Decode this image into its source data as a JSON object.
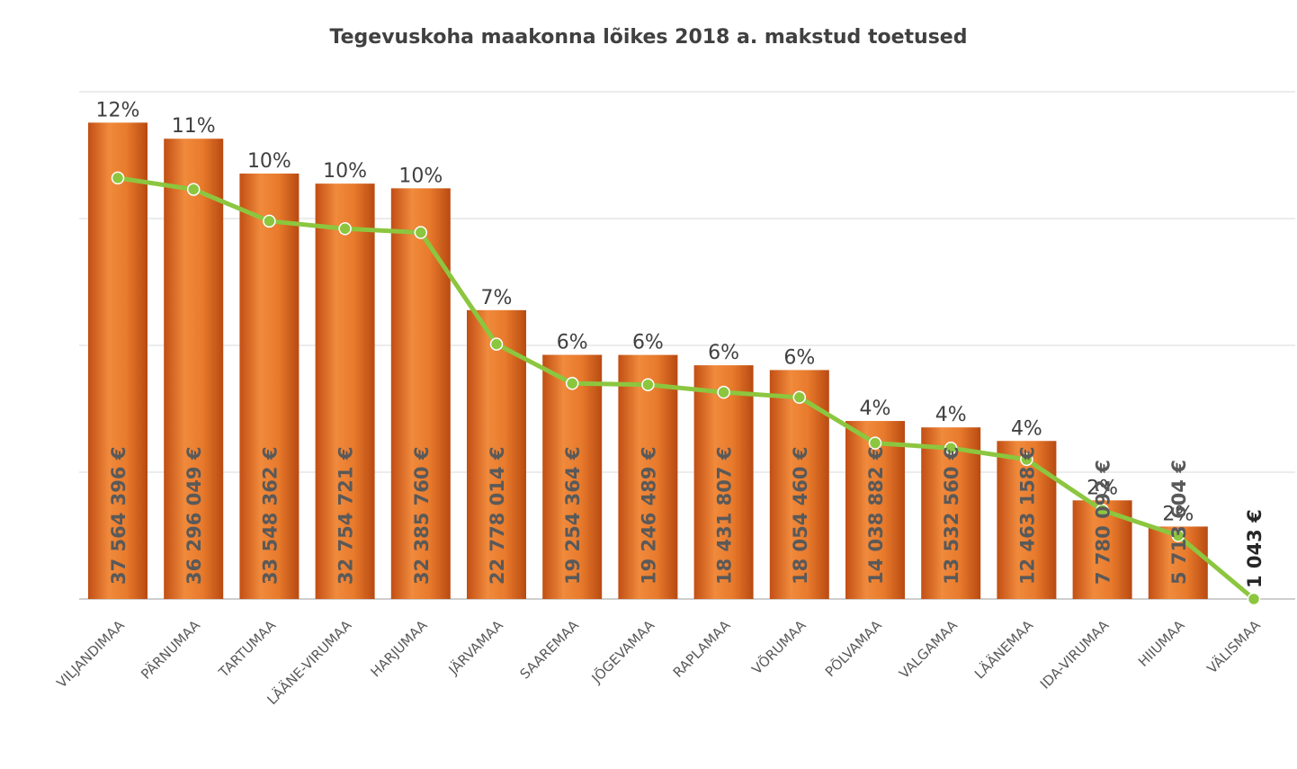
{
  "chart_data": {
    "type": "bar",
    "title": "Tegevuskoha maakonna lõikes 2018 a. makstud toetused",
    "xlabel": "",
    "ylabel": "",
    "categories": [
      "VILJANDIMAA",
      "PÄRNUMAA",
      "TARTUMAA",
      "LÄÄNE-VIRUMAA",
      "HARJUMAA",
      "JÄRVAMAA",
      "SAAREMAA",
      "JÕGEVAMAA",
      "RAPLAMAA",
      "VÕRUMAA",
      "PÕLVAMAA",
      "VALGAMAA",
      "LÄÄNEMAA",
      "IDA-VIRUMAA",
      "HIIUMAA",
      "VÄLISMAA"
    ],
    "values": [
      37564396,
      36296049,
      33548362,
      32754721,
      32385760,
      22778014,
      19254364,
      19246489,
      18431807,
      18054460,
      14038882,
      13532560,
      12463158,
      7780092,
      5713604,
      1043
    ],
    "value_labels": [
      "37 564 396 €",
      "36 296 049 €",
      "33 548 362 €",
      "32 754 721 €",
      "32 385 760 €",
      "22 778 014 €",
      "19 254 364 €",
      "19 246 489 €",
      "18 431 807 €",
      "18 054 460 €",
      "14 038 882 €",
      "13 532 560 €",
      "12 463 158 €",
      "7 780 092 €",
      "5 713 604 €",
      "1 043 €"
    ],
    "percent_labels": [
      "12%",
      "11%",
      "10%",
      "10%",
      "10%",
      "7%",
      "6%",
      "6%",
      "6%",
      "6%",
      "4%",
      "4%",
      "4%",
      "2%",
      "2%",
      ""
    ],
    "line_series": [
      33200000,
      32300000,
      29800000,
      29200000,
      28900000,
      20100000,
      17000000,
      16900000,
      16300000,
      15900000,
      12300000,
      11900000,
      11000000,
      7000000,
      5000000,
      0
    ],
    "ylim": [
      0,
      40000000
    ],
    "y_gridlines": [
      0,
      10000000,
      20000000,
      30000000,
      40000000
    ],
    "grid": true,
    "legend": "none",
    "colors": {
      "bar_top": "#e8782a",
      "bar_mid": "#c8561a",
      "bar_bottom": "#f09040",
      "line": "#8cc63f",
      "grid": "#d9d9d9",
      "axis": "#bfbfbf"
    }
  }
}
